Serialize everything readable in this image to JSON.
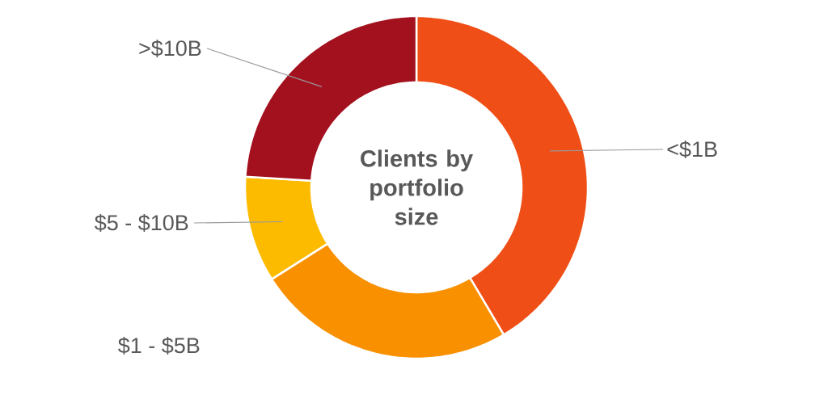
{
  "chart_data": {
    "type": "donut",
    "title": "Clients by portfolio size",
    "categories": [
      "<$1B",
      "$1 - $5B",
      "$5 - $10B",
      ">$10B"
    ],
    "values": [
      41.5,
      24.5,
      10,
      24
    ],
    "colors": [
      "#ef4f17",
      "#f89000",
      "#fdbb00",
      "#a3101e"
    ]
  }
}
